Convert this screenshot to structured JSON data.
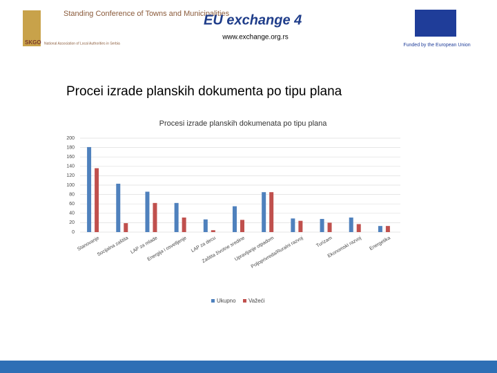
{
  "header": {
    "org_name": "Standing Conference of Towns and Municipalities",
    "org_sub": "National Association of Local Authorities in Serbia",
    "org_abbr": "SKGO",
    "project_logo": "EU exchange 4",
    "website": "www.exchange.org.rs",
    "funder": "Funded by the European Union"
  },
  "slide_title": "Procei izrade planskih dokumenta po tipu plana",
  "chart_data": {
    "type": "bar",
    "title": "Procesi izrade planskih dokumenata po tipu plana",
    "categories": [
      "Stanovanje",
      "Socijalna zaštita",
      "LAP za mlade",
      "Energija i osvetljenje",
      "LAP za decu",
      "Zaštita životne sredine",
      "Upravljanje otpadom",
      "Poljoprivreda/Ruralni razvoj",
      "Turizam",
      "Ekonomski razvoj",
      "Energetika"
    ],
    "series": [
      {
        "name": "Ukupno",
        "color": "#4f81bd",
        "values": [
          181,
          103,
          86,
          62,
          27,
          55,
          85,
          29,
          28,
          31,
          13
        ]
      },
      {
        "name": "Važeći",
        "color": "#c0504d",
        "values": [
          136,
          19,
          62,
          31,
          4,
          26,
          85,
          24,
          20,
          17,
          13
        ]
      }
    ],
    "ylim": [
      0,
      200
    ],
    "yticks": [
      0,
      20,
      40,
      60,
      80,
      100,
      120,
      140,
      160,
      180,
      200
    ],
    "grid": true,
    "legend": "bottom"
  }
}
